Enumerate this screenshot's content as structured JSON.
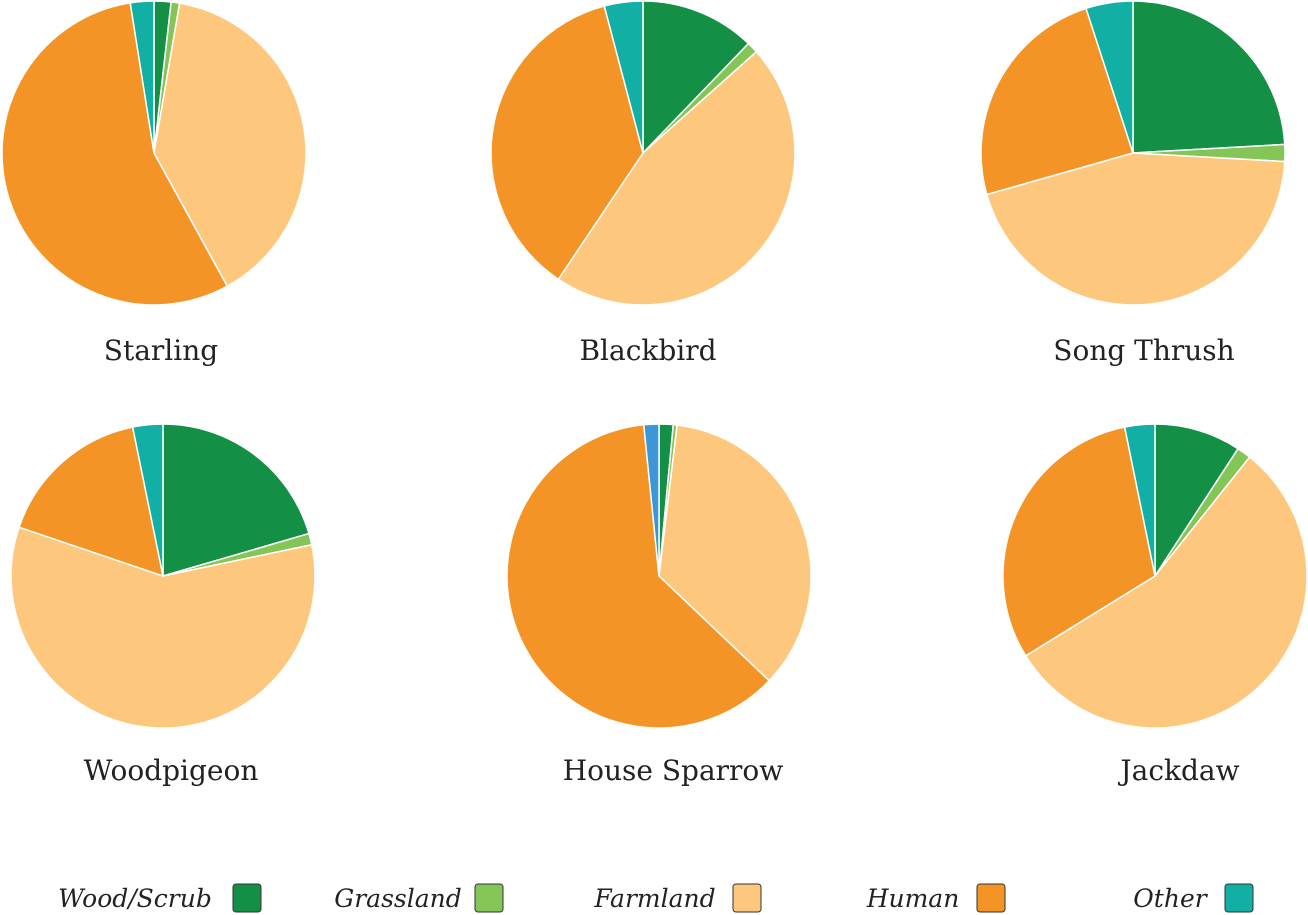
{
  "chart_data": {
    "type": "pie",
    "categories": [
      "Wood/Scrub",
      "Grassland",
      "Farmland",
      "Human",
      "Other"
    ],
    "colors": {
      "Wood/Scrub": "#138f46",
      "Grassland": "#84c557",
      "Farmland": "#fec77e",
      "Human": "#f59426",
      "Other": "#12b0a4",
      "Unlabeled": "#3d97d6"
    },
    "legend": {
      "placement": "bottom",
      "items": [
        {
          "label": "Wood/Scrub",
          "color": "#138f46"
        },
        {
          "label": "Grassland",
          "color": "#84c557"
        },
        {
          "label": "Farmland",
          "color": "#fec77e"
        },
        {
          "label": "Human",
          "color": "#f59426"
        },
        {
          "label": "Other",
          "color": "#12b0a4"
        }
      ]
    },
    "pies": [
      {
        "title": "Starling",
        "slices": [
          {
            "category": "Wood/Scrub",
            "value": 1.8
          },
          {
            "category": "Grassland",
            "value": 0.9
          },
          {
            "category": "Farmland",
            "value": 39.3
          },
          {
            "category": "Human",
            "value": 55.5
          },
          {
            "category": "Other",
            "value": 2.5
          }
        ]
      },
      {
        "title": "Blackbird",
        "slices": [
          {
            "category": "Wood/Scrub",
            "value": 12.2
          },
          {
            "category": "Grassland",
            "value": 1.2
          },
          {
            "category": "Farmland",
            "value": 46.0
          },
          {
            "category": "Human",
            "value": 36.5
          },
          {
            "category": "Other",
            "value": 4.1
          }
        ]
      },
      {
        "title": "Song Thrush",
        "slices": [
          {
            "category": "Wood/Scrub",
            "value": 24.1
          },
          {
            "category": "Grassland",
            "value": 1.8
          },
          {
            "category": "Farmland",
            "value": 44.7
          },
          {
            "category": "Human",
            "value": 24.4
          },
          {
            "category": "Other",
            "value": 5.0
          }
        ]
      },
      {
        "title": "Woodpigeon",
        "slices": [
          {
            "category": "Wood/Scrub",
            "value": 20.5
          },
          {
            "category": "Grassland",
            "value": 1.2
          },
          {
            "category": "Farmland",
            "value": 58.5
          },
          {
            "category": "Human",
            "value": 16.6
          },
          {
            "category": "Other",
            "value": 3.2
          }
        ]
      },
      {
        "title": "House Sparrow",
        "slices": [
          {
            "category": "Wood/Scrub",
            "value": 1.5
          },
          {
            "category": "Grassland",
            "value": 0.4
          },
          {
            "category": "Farmland",
            "value": 35.2
          },
          {
            "category": "Human",
            "value": 61.3
          },
          {
            "category": "Unlabeled",
            "value": 1.6
          }
        ]
      },
      {
        "title": "Jackdaw",
        "slices": [
          {
            "category": "Wood/Scrub",
            "value": 9.2
          },
          {
            "category": "Grassland",
            "value": 1.5
          },
          {
            "category": "Farmland",
            "value": 55.5
          },
          {
            "category": "Human",
            "value": 30.6
          },
          {
            "category": "Other",
            "value": 3.2
          }
        ]
      }
    ]
  }
}
